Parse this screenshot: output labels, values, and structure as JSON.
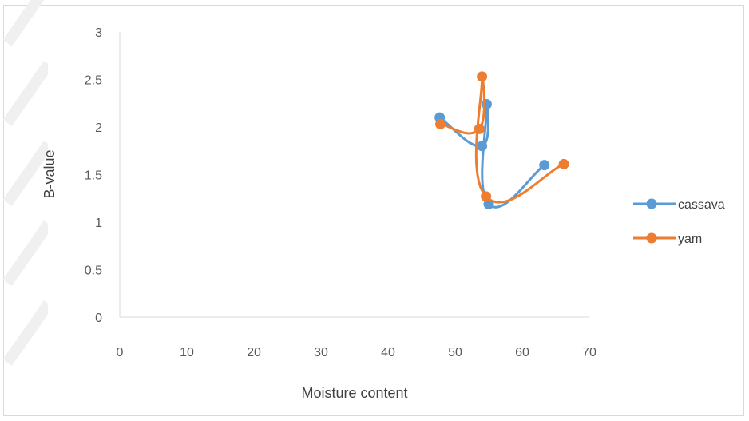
{
  "chart_data": {
    "type": "scatter",
    "title": "",
    "xlabel": "Moisture content",
    "ylabel": "B-value",
    "xlim": [
      0,
      70
    ],
    "ylim": [
      0,
      3
    ],
    "xticks": [
      0,
      10,
      20,
      30,
      40,
      50,
      60,
      70
    ],
    "xtick_labels": [
      "0",
      "10",
      "20",
      "30",
      "40",
      "50",
      "60",
      "70"
    ],
    "yticks": [
      0,
      0.5,
      1,
      1.5,
      2,
      2.5,
      3
    ],
    "ytick_labels": [
      "0",
      "0.5",
      "1",
      "1.5",
      "2",
      "2.5",
      "3"
    ],
    "grid": false,
    "legend_position": "right",
    "line_style": "smooth lines with markers",
    "series": [
      {
        "name": "cassava",
        "color": "#5b9bd5",
        "points": [
          {
            "x": 47.7,
            "y": 2.1
          },
          {
            "x": 54.0,
            "y": 1.8
          },
          {
            "x": 54.7,
            "y": 2.24
          },
          {
            "x": 55.0,
            "y": 1.19
          },
          {
            "x": 63.3,
            "y": 1.6
          }
        ]
      },
      {
        "name": "yam",
        "color": "#ed7d31",
        "points": [
          {
            "x": 47.8,
            "y": 2.03
          },
          {
            "x": 53.6,
            "y": 1.98
          },
          {
            "x": 54.0,
            "y": 2.53
          },
          {
            "x": 54.6,
            "y": 1.27
          },
          {
            "x": 66.2,
            "y": 1.61
          }
        ]
      }
    ]
  }
}
